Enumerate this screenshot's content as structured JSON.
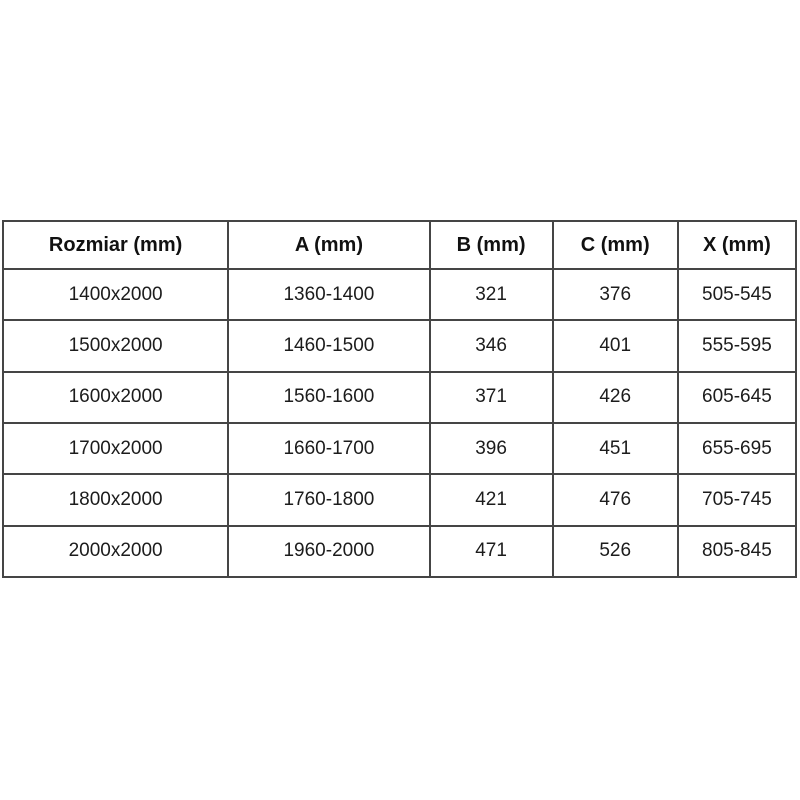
{
  "table": {
    "headers": [
      "Rozmiar (mm)",
      "A (mm)",
      "B (mm)",
      "C (mm)",
      "X (mm)"
    ],
    "rows": [
      [
        "1400x2000",
        "1360-1400",
        "321",
        "376",
        "505-545"
      ],
      [
        "1500x2000",
        "1460-1500",
        "346",
        "401",
        "555-595"
      ],
      [
        "1600x2000",
        "1560-1600",
        "371",
        "426",
        "605-645"
      ],
      [
        "1700x2000",
        "1660-1700",
        "396",
        "451",
        "655-695"
      ],
      [
        "1800x2000",
        "1760-1800",
        "421",
        "476",
        "705-745"
      ],
      [
        "2000x2000",
        "1960-2000",
        "471",
        "526",
        "805-845"
      ]
    ]
  },
  "colors": {
    "border": "#454545",
    "text": "#1c1c1c",
    "background": "#ffffff"
  }
}
